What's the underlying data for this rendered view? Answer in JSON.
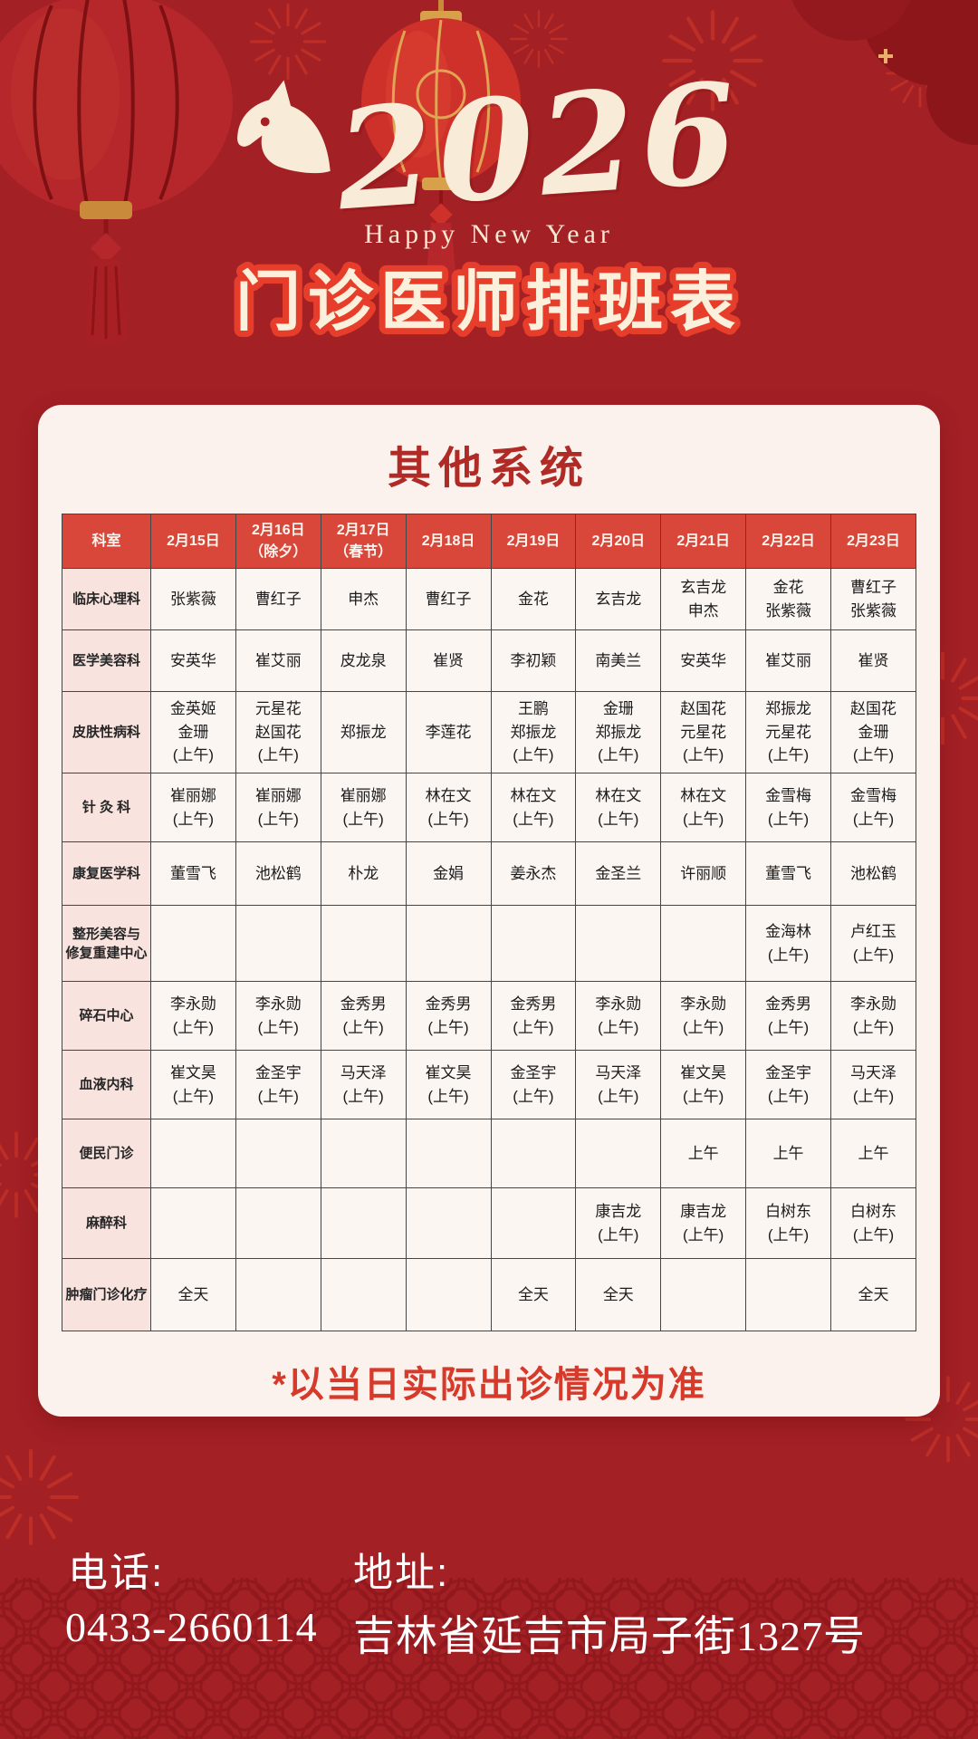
{
  "header": {
    "year": "2026",
    "greeting": "Happy New Year",
    "title": "门诊医师排班表"
  },
  "card": {
    "heading": "其他系统",
    "footnote": "*以当日实际出诊情况为准"
  },
  "table": {
    "headers": [
      "科室",
      "2月15日",
      "2月16日\n（除夕）",
      "2月17日\n（春节）",
      "2月18日",
      "2月19日",
      "2月20日",
      "2月21日",
      "2月22日",
      "2月23日"
    ],
    "rows": [
      {
        "dept": "临床心理科",
        "cells": [
          "张紫薇",
          "曹红子",
          "申杰",
          "曹红子",
          "金花",
          "玄吉龙",
          "玄吉龙\n申杰",
          "金花\n张紫薇",
          "曹红子\n张紫薇"
        ]
      },
      {
        "dept": "医学美容科",
        "cells": [
          "安英华",
          "崔艾丽",
          "皮龙泉",
          "崔贤",
          "李初颖",
          "南美兰",
          "安英华",
          "崔艾丽",
          "崔贤"
        ]
      },
      {
        "dept": "皮肤性病科",
        "cells": [
          "金英姬\n金珊\n(上午)",
          "元星花\n赵国花\n(上午)",
          "郑振龙",
          "李莲花",
          "王鹏\n郑振龙\n(上午)",
          "金珊\n郑振龙\n(上午)",
          "赵国花\n元星花\n(上午)",
          "郑振龙\n元星花\n(上午)",
          "赵国花\n金珊\n(上午)"
        ]
      },
      {
        "dept": "针 灸 科",
        "cells": [
          "崔丽娜\n(上午)",
          "崔丽娜\n(上午)",
          "崔丽娜\n(上午)",
          "林在文\n(上午)",
          "林在文\n(上午)",
          "林在文\n(上午)",
          "林在文\n(上午)",
          "金雪梅\n(上午)",
          "金雪梅\n(上午)"
        ]
      },
      {
        "dept": "康复医学科",
        "cells": [
          "董雪飞",
          "池松鹤",
          "朴龙",
          "金娟",
          "姜永杰",
          "金圣兰",
          "许丽顺",
          "董雪飞",
          "池松鹤"
        ]
      },
      {
        "dept": "整形美容与\n修复重建中心",
        "cells": [
          "",
          "",
          "",
          "",
          "",
          "",
          "",
          "金海林\n(上午)",
          "卢红玉\n(上午)"
        ]
      },
      {
        "dept": "碎石中心",
        "cells": [
          "李永勋\n(上午)",
          "李永勋\n(上午)",
          "金秀男\n(上午)",
          "金秀男\n(上午)",
          "金秀男\n(上午)",
          "李永勋\n(上午)",
          "李永勋\n(上午)",
          "金秀男\n(上午)",
          "李永勋\n(上午)"
        ]
      },
      {
        "dept": "血液内科",
        "cells": [
          "崔文昊\n(上午)",
          "金圣宇\n(上午)",
          "马天泽\n(上午)",
          "崔文昊\n(上午)",
          "金圣宇\n(上午)",
          "马天泽\n(上午)",
          "崔文昊\n(上午)",
          "金圣宇\n(上午)",
          "马天泽\n(上午)"
        ]
      },
      {
        "dept": "便民门诊",
        "cells": [
          "",
          "",
          "",
          "",
          "",
          "",
          "上午",
          "上午",
          "上午"
        ]
      },
      {
        "dept": "麻醉科",
        "cells": [
          "",
          "",
          "",
          "",
          "",
          "康吉龙\n(上午)",
          "康吉龙\n(上午)",
          "白树东\n(上午)",
          "白树东\n(上午)"
        ]
      },
      {
        "dept": "肿瘤门诊化疗",
        "cells": [
          "全天",
          "",
          "",
          "",
          "全天",
          "全天",
          "",
          "",
          "全天"
        ]
      }
    ]
  },
  "footer": {
    "phone_label": "电话:",
    "phone": "0433-2660114",
    "address_label": "地址:",
    "address": "吉林省延吉市局子街1327号"
  },
  "colors": {
    "page_background": "#A32025",
    "table_header_red": "#D8473A",
    "dept_column_pink": "#F9E3DE",
    "card_background": "#FBF2EE",
    "title_fill": "#FBF0DB",
    "title_stroke": "#E73E2C",
    "heading_red": "#B02A26",
    "footnote_red": "#D63A2B"
  }
}
